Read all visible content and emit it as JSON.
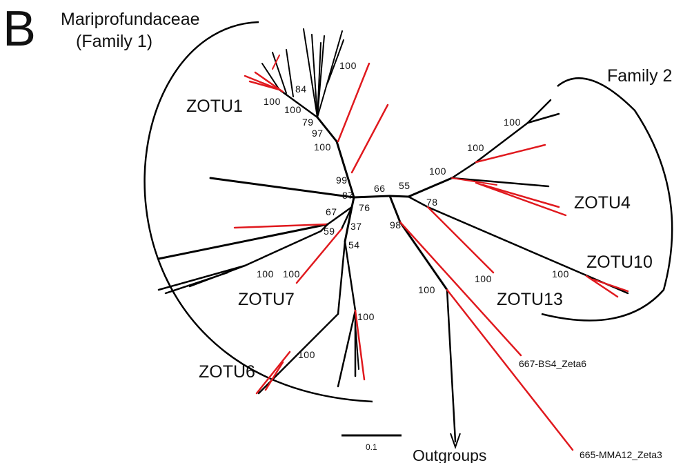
{
  "panel": "B",
  "family1": {
    "name": "Mariprofundaceae",
    "sub": "(Family 1)"
  },
  "family2": "Family 2",
  "clades": [
    "ZOTU1",
    "ZOTU4",
    "ZOTU10",
    "ZOTU13",
    "ZOTU7",
    "ZOTU6"
  ],
  "outgroups": "Outgroups",
  "tips": [
    "667-BS4_Zeta6",
    "665-MMA12_Zeta3"
  ],
  "scale": "0.1",
  "bootstrap": [
    100,
    84,
    100,
    100,
    79,
    97,
    100,
    99,
    87,
    66,
    55,
    76,
    67,
    37,
    59,
    98,
    78,
    54,
    100,
    100,
    100,
    100,
    100,
    100,
    100,
    100,
    100,
    100
  ]
}
